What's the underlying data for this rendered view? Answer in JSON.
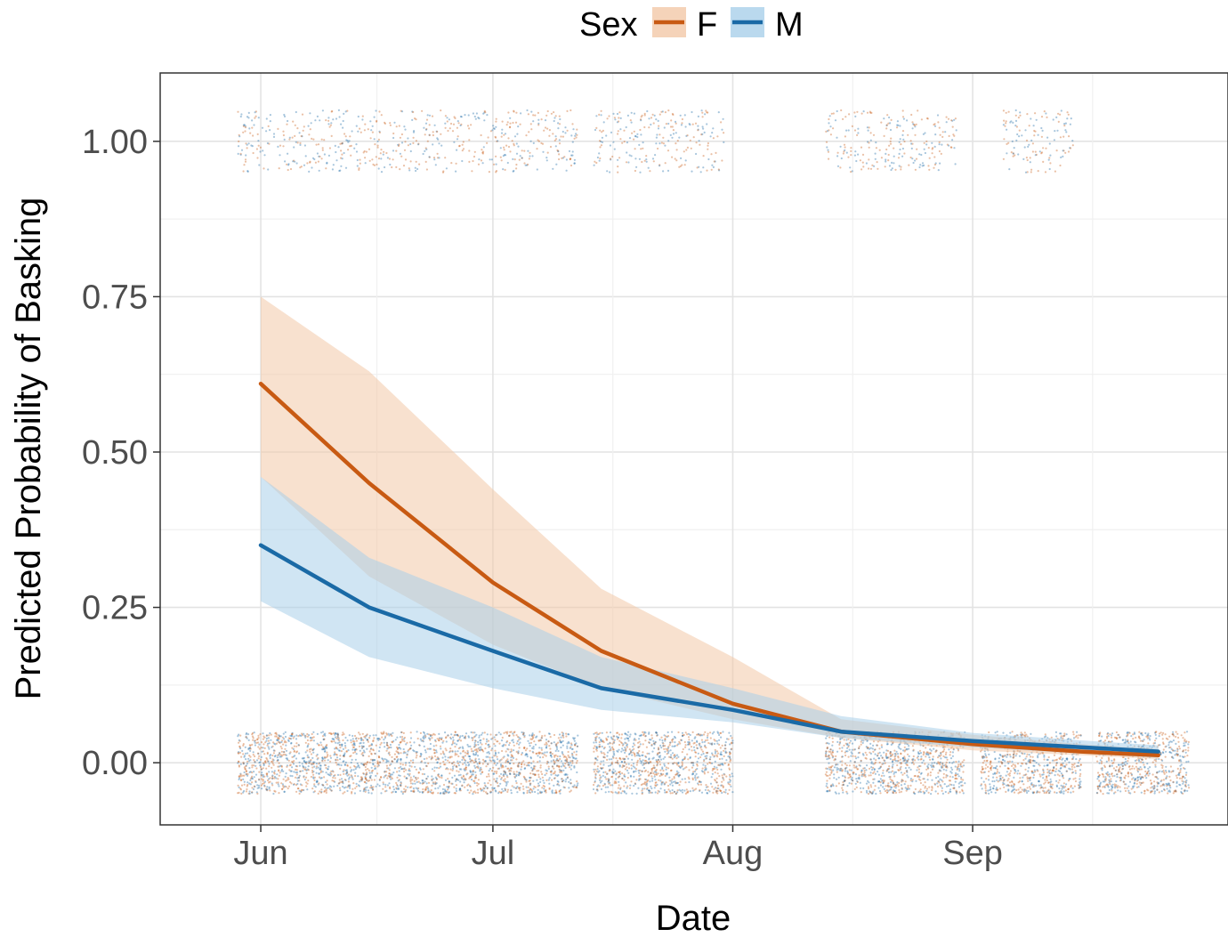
{
  "chart_data": {
    "type": "line",
    "xlabel": "Date",
    "ylabel": "Predicted Probability of Basking",
    "x_ticks": [
      {
        "label": "Jun",
        "date": "06-01"
      },
      {
        "label": "Jul",
        "date": "07-01"
      },
      {
        "label": "Aug",
        "date": "08-01"
      },
      {
        "label": "Sep",
        "date": "09-01"
      }
    ],
    "y_ticks": [
      "0.00",
      "0.25",
      "0.50",
      "0.75",
      "1.00"
    ],
    "xlim": [
      "05-19",
      "10-04"
    ],
    "ylim": [
      -0.1,
      1.11
    ],
    "grid": true,
    "legend": {
      "title": "Sex",
      "placement": "top"
    },
    "x": [
      "06-01",
      "06-15",
      "07-01",
      "07-15",
      "08-01",
      "08-15",
      "09-01",
      "09-15",
      "09-25"
    ],
    "series": [
      {
        "name": "F",
        "color": "#c85a13",
        "band_color": "#f3c8a8",
        "values": [
          0.61,
          0.45,
          0.29,
          0.18,
          0.095,
          0.05,
          0.03,
          0.018,
          0.012
        ],
        "lower": [
          0.46,
          0.3,
          0.19,
          0.12,
          0.07,
          0.04,
          0.02,
          0.012,
          0.006
        ],
        "upper": [
          0.75,
          0.63,
          0.44,
          0.28,
          0.17,
          0.07,
          0.045,
          0.03,
          0.022
        ]
      },
      {
        "name": "M",
        "color": "#1a6aa6",
        "band_color": "#a9d0ea",
        "values": [
          0.35,
          0.25,
          0.18,
          0.12,
          0.085,
          0.05,
          0.035,
          0.025,
          0.018
        ],
        "lower": [
          0.26,
          0.17,
          0.12,
          0.085,
          0.065,
          0.04,
          0.025,
          0.015,
          0.008
        ],
        "upper": [
          0.46,
          0.33,
          0.25,
          0.17,
          0.12,
          0.075,
          0.048,
          0.036,
          0.028
        ]
      }
    ],
    "observations": {
      "y_levels": [
        0,
        1
      ],
      "jitter": 0.05,
      "colors": [
        "#c85a13",
        "#1a6aa6"
      ],
      "ranges_y0": [
        [
          "05-29",
          "07-12"
        ],
        [
          "07-14",
          "08-01"
        ],
        [
          "08-13",
          "08-31"
        ],
        [
          "09-02",
          "09-15"
        ],
        [
          "09-17",
          "09-29"
        ]
      ],
      "ranges_y1": [
        [
          "05-29",
          "07-12"
        ],
        [
          "07-14",
          "07-31"
        ],
        [
          "08-13",
          "08-30"
        ],
        [
          "09-05",
          "09-14"
        ]
      ]
    }
  }
}
